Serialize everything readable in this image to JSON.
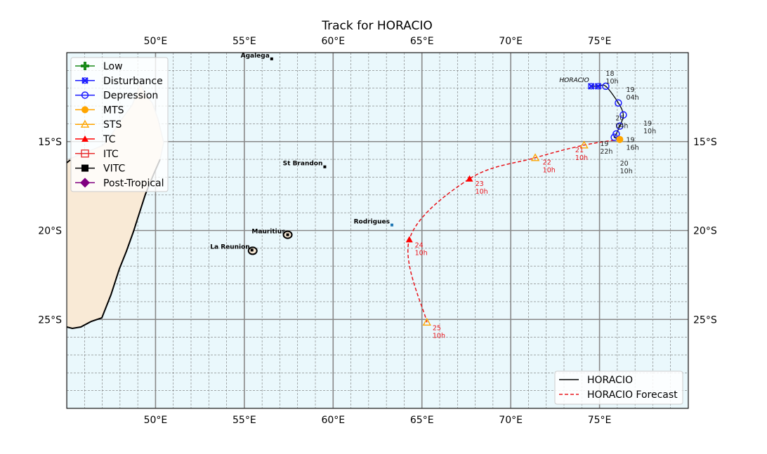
{
  "chart_data": {
    "type": "map-track",
    "title": "Track for HORACIO",
    "lon_range": [
      45,
      80
    ],
    "lat_range": [
      -30,
      -10
    ],
    "grid": true,
    "x_tick_labels": [
      {
        "lon": 50,
        "label": "50°E"
      },
      {
        "lon": 55,
        "label": "55°E"
      },
      {
        "lon": 60,
        "label": "60°E"
      },
      {
        "lon": 65,
        "label": "65°E"
      },
      {
        "lon": 70,
        "label": "70°E"
      },
      {
        "lon": 75,
        "label": "75°E"
      }
    ],
    "y_tick_labels": [
      {
        "lat": -15,
        "label": "15°S"
      },
      {
        "lat": -20,
        "label": "20°S"
      },
      {
        "lat": -25,
        "label": "25°S"
      }
    ],
    "colors": {
      "ocean": "#eaf8fc",
      "land": "#f9ead6",
      "observed": "#000000",
      "forecast": "#e8141b"
    },
    "storm_label": "HORACIO",
    "observed_track": [
      {
        "lon": 74.53,
        "lat": -11.89,
        "type": "Disturbance"
      },
      {
        "lon": 74.92,
        "lat": -11.89,
        "type": "Disturbance"
      },
      {
        "lon": 75.35,
        "lat": -11.89,
        "type": "Depression"
      },
      {
        "lon": 76.06,
        "lat": -12.83,
        "type": "Depression"
      },
      {
        "lon": 76.34,
        "lat": -13.5,
        "type": "Depression"
      },
      {
        "lon": 76.14,
        "lat": -14.13,
        "type": "Depression"
      },
      {
        "lon": 75.94,
        "lat": -14.57,
        "type": "Depression"
      },
      {
        "lon": 75.83,
        "lat": -14.76,
        "type": "Depression"
      },
      {
        "lon": 76.14,
        "lat": -14.88,
        "type": "MTS"
      }
    ],
    "forecast_track": [
      {
        "lon": 76.14,
        "lat": -14.88,
        "type": "MTS"
      },
      {
        "lon": 74.13,
        "lat": -15.2,
        "type": "STS"
      },
      {
        "lon": 71.38,
        "lat": -15.91,
        "type": "STS"
      },
      {
        "lon": 67.68,
        "lat": -17.09,
        "type": "TC"
      },
      {
        "lon": 64.29,
        "lat": -20.51,
        "type": "TC"
      },
      {
        "lon": 65.28,
        "lat": -25.16,
        "type": "STS"
      }
    ],
    "observed_labels": [
      {
        "lon": 75.35,
        "lat": -11.3,
        "day": "18",
        "hour": "10h"
      },
      {
        "lon": 76.5,
        "lat": -12.2,
        "day": "19",
        "hour": "04h"
      },
      {
        "lon": 75.9,
        "lat": -13.8,
        "day": "20",
        "hour": "04h"
      },
      {
        "lon": 76.6,
        "lat": -14.1,
        "day": "19",
        "hour": "10h"
      },
      {
        "lon": 76.5,
        "lat": -14.55,
        "day": "19",
        "hour": "16h"
      },
      {
        "lon": 75.9,
        "lat": -15.25,
        "day": "19",
        "hour": "22h"
      },
      {
        "lon": 76.15,
        "lat": -15.4,
        "day": "20",
        "hour": "10h"
      }
    ],
    "forecast_labels": [
      {
        "lon": 74.5,
        "lat": -15.6,
        "day": "21",
        "hour": "10h"
      },
      {
        "lon": 71.8,
        "lat": -16.3,
        "day": "22",
        "hour": "10h"
      },
      {
        "lon": 68.0,
        "lat": -17.5,
        "day": "23",
        "hour": "10h"
      },
      {
        "lon": 64.6,
        "lat": -20.95,
        "day": "24",
        "hour": "10h"
      },
      {
        "lon": 65.6,
        "lat": -25.6,
        "day": "25",
        "hour": "10h"
      }
    ],
    "places": [
      {
        "name": "Agalega",
        "lon": 56.54,
        "lat": -10.35
      },
      {
        "name": "St Brandon",
        "lon": 59.53,
        "lat": -16.42
      },
      {
        "name": "Rodrigues",
        "lon": 63.31,
        "lat": -19.69
      },
      {
        "name": "Mauritius",
        "lon": 57.44,
        "lat": -20.24
      },
      {
        "name": "La Reunion",
        "lon": 55.43,
        "lat": -21.1
      }
    ],
    "intensity_legend": [
      {
        "label": "Low",
        "color": "#1a8a1a",
        "marker": "plus"
      },
      {
        "label": "Disturbance",
        "color": "#1a1aff",
        "marker": "x-open"
      },
      {
        "label": "Depression",
        "color": "#1a1aff",
        "marker": "circle-open"
      },
      {
        "label": "MTS",
        "color": "#ffa500",
        "marker": "circle"
      },
      {
        "label": "STS",
        "color": "#ffa500",
        "marker": "triangle-open"
      },
      {
        "label": "TC",
        "color": "#ff0000",
        "marker": "triangle"
      },
      {
        "label": "ITC",
        "color": "#e83030",
        "marker": "square-open"
      },
      {
        "label": "VITC",
        "color": "#000000",
        "marker": "square"
      },
      {
        "label": "Post-Tropical",
        "color": "#800080",
        "marker": "diamond"
      }
    ],
    "legend_placement_intensity": "top-left",
    "track_legend": [
      {
        "label": "HORACIO",
        "style": "solid",
        "color": "#000000"
      },
      {
        "label": "HORACIO Forecast",
        "style": "dashed",
        "color": "#e8141b"
      }
    ],
    "legend_placement_track": "bottom-right"
  }
}
